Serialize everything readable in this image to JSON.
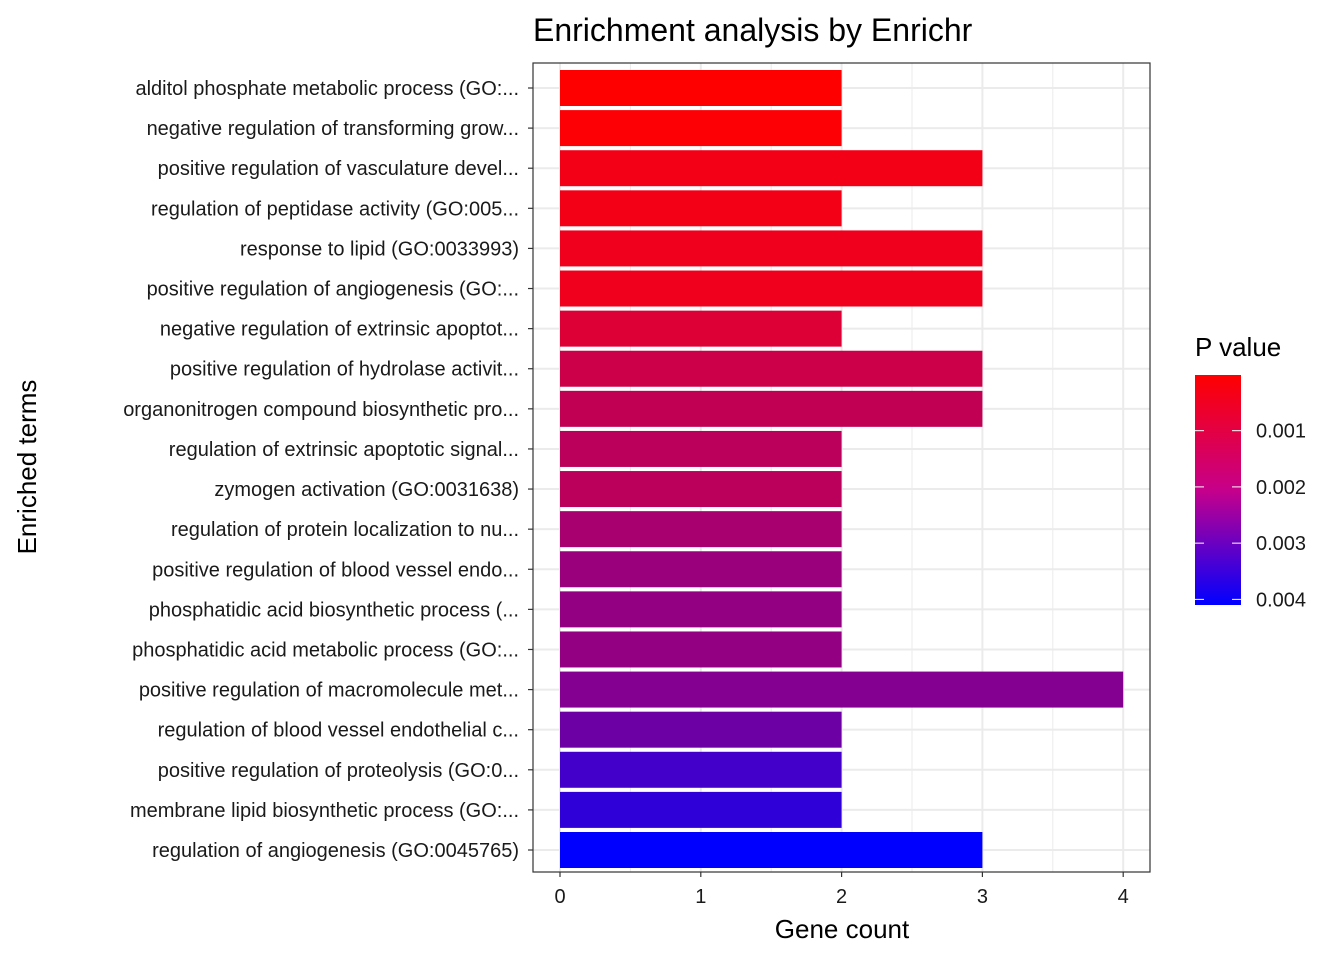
{
  "chart_data": {
    "type": "bar",
    "orientation": "horizontal",
    "title": "Enrichment analysis by Enrichr",
    "xlabel": "Gene count",
    "ylabel": "Enriched terms",
    "xlim": [
      -0.2,
      4.2
    ],
    "xticks": [
      0,
      1,
      2,
      3,
      4
    ],
    "grid": true,
    "categories": [
      "alditol phosphate metabolic process (GO:...",
      "negative regulation of transforming grow...",
      "positive regulation of vasculature devel...",
      "regulation of peptidase activity (GO:005...",
      "response to lipid (GO:0033993)",
      "positive regulation of angiogenesis (GO:...",
      "negative regulation of extrinsic apoptot...",
      "positive regulation of hydrolase activit...",
      "organonitrogen compound biosynthetic pro...",
      "regulation of extrinsic apoptotic signal...",
      "zymogen activation (GO:0031638)",
      "regulation of protein localization to nu...",
      "positive regulation of blood vessel endo...",
      "phosphatidic acid biosynthetic process (...",
      "phosphatidic acid metabolic process (GO:...",
      "positive regulation of macromolecule met...",
      "regulation of blood vessel endothelial c...",
      "positive regulation of proteolysis (GO:0...",
      "membrane lipid biosynthetic process (GO:...",
      "regulation of angiogenesis (GO:0045765)"
    ],
    "values": [
      2,
      2,
      3,
      2,
      3,
      3,
      2,
      3,
      3,
      2,
      2,
      2,
      2,
      2,
      2,
      4,
      2,
      2,
      2,
      3
    ],
    "p_values": [
      1e-05,
      0.0002,
      0.0006,
      0.0006,
      0.0007,
      0.0007,
      0.0012,
      0.0015,
      0.0017,
      0.0018,
      0.0018,
      0.0021,
      0.0023,
      0.0024,
      0.0024,
      0.0026,
      0.0029,
      0.0034,
      0.0036,
      0.0041
    ],
    "legend": {
      "title": "P value",
      "position": "right",
      "type": "colorbar",
      "ticks": [
        0.001,
        0.002,
        0.003,
        0.004
      ],
      "tick_labels": [
        "0.001",
        "0.002",
        "0.003",
        "0.004"
      ],
      "range": [
        1e-05,
        0.0041
      ],
      "low_color": "#FF0000",
      "high_color": "#0000FF"
    }
  }
}
